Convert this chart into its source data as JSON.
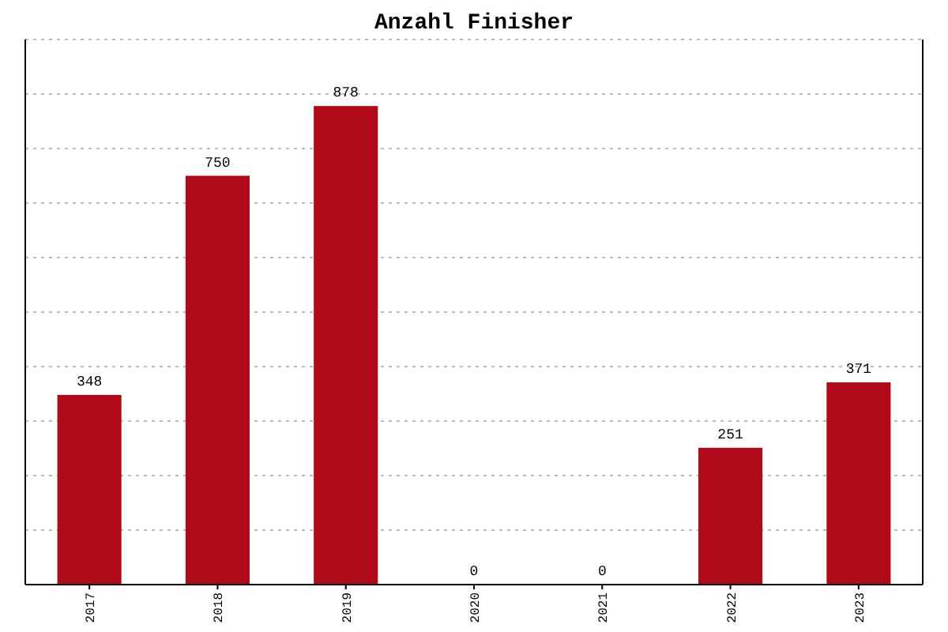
{
  "chart_data": {
    "type": "bar",
    "title": "Anzahl Finisher",
    "categories": [
      "2017",
      "2018",
      "2019",
      "2020",
      "2021",
      "2022",
      "2023"
    ],
    "values": [
      348,
      750,
      878,
      0,
      0,
      251,
      371
    ],
    "color": "#b00a1a",
    "ylim": [
      0,
      1000
    ],
    "yticks": [
      {
        "value": 0,
        "label": null
      },
      {
        "value": 100,
        "label": null
      },
      {
        "value": 200,
        "label": null
      },
      {
        "value": 300,
        "label": null
      },
      {
        "value": 400,
        "label": null
      },
      {
        "value": 500,
        "label": null
      },
      {
        "value": 600,
        "label": null
      },
      {
        "value": 700,
        "label": null
      },
      {
        "value": 800,
        "label": null
      },
      {
        "value": 900,
        "label": null
      },
      {
        "value": 1000,
        "label": null
      }
    ],
    "grid": "y",
    "data_labels": true
  }
}
